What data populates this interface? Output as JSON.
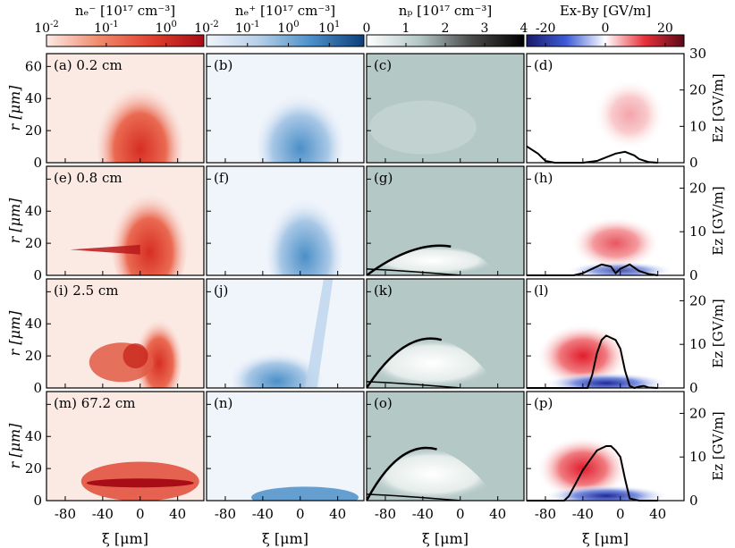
{
  "chart_data": {
    "type": "heatmap",
    "colorbars": [
      {
        "label": "nₑ⁻ [10¹⁷ cm⁻³]",
        "scale": "log",
        "ticks": [
          "10-2",
          "10-1",
          "100"
        ],
        "colors": [
          "#fbeae4",
          "#f08a6c",
          "#e0402e",
          "#a80c16"
        ]
      },
      {
        "label": "nₑ⁺ [10¹⁷ cm⁻³]",
        "scale": "log",
        "ticks": [
          "10-2",
          "10-1",
          "100",
          "101"
        ],
        "colors": [
          "#f0f4fb",
          "#b6cfe8",
          "#4b8fc8",
          "#0d3f7a"
        ]
      },
      {
        "label": "nₚ [10¹⁷ cm⁻³]",
        "scale": "linear",
        "ticks": [
          "0",
          "1",
          "2",
          "3",
          "4"
        ],
        "colors": [
          "#ffffff",
          "#b4c8c6",
          "#4a4a4a",
          "#000000"
        ]
      },
      {
        "label": "Ex-By [GV/m]",
        "scale": "linear",
        "ticks": [
          "-20",
          "0",
          "20"
        ],
        "colors": [
          "#1a1a6b",
          "#3d5bd6",
          "#ffffff",
          "#e8303a",
          "#5a0a18"
        ]
      }
    ],
    "xlabel": "ξ [μm]",
    "ylabel": "r [μm]",
    "ylabel_right": "Ez [GV/m]",
    "xlim": [
      -100,
      68
    ],
    "ylim": [
      0,
      68
    ],
    "xticks": [
      "-80",
      "-40",
      "0",
      "40"
    ],
    "yticks": [
      "0",
      "20",
      "40",
      "60"
    ],
    "right_ylim_first": [
      0,
      30
    ],
    "right_yticks_first": [
      "0",
      "10",
      "20",
      "30"
    ],
    "right_yticks": [
      "0",
      "10",
      "20"
    ],
    "rows": [
      {
        "position": "0.2 cm",
        "labels": [
          "(a) 0.2 cm",
          "(b)",
          "(c)",
          "(d)"
        ],
        "ez_curve": {
          "xi": [
            -100,
            -88,
            -80,
            -70,
            -40,
            -25,
            -15,
            -5,
            5,
            15,
            20,
            30,
            40
          ],
          "ez": [
            4.5,
            2.5,
            0.5,
            0,
            0,
            0.5,
            1.5,
            2.5,
            3.0,
            2.0,
            1.0,
            0.2,
            0
          ]
        }
      },
      {
        "position": "0.8 cm",
        "labels": [
          "(e) 0.8 cm",
          "(f)",
          "(g)",
          "(h)"
        ],
        "ez_curve": {
          "xi": [
            -100,
            -85,
            -70,
            -50,
            -40,
            -30,
            -20,
            -10,
            -5,
            0,
            10,
            20,
            30,
            40
          ],
          "ez": [
            0,
            0,
            0,
            0,
            0.5,
            1.5,
            2.5,
            2.0,
            0.5,
            1.5,
            2.5,
            1.0,
            0.3,
            0
          ]
        }
      },
      {
        "position": "2.5 cm",
        "labels": [
          "(i) 2.5 cm",
          "(j)",
          "(k)",
          "(l)"
        ],
        "ez_curve": {
          "xi": [
            -100,
            -60,
            -35,
            -30,
            -25,
            -20,
            -15,
            -10,
            -5,
            0,
            5,
            10,
            15,
            20,
            25,
            30,
            40
          ],
          "ez": [
            0,
            0,
            0,
            3.0,
            8.0,
            11.0,
            12.0,
            11.5,
            11.0,
            9.0,
            4.0,
            0.5,
            0,
            0.3,
            0.5,
            0.1,
            0
          ]
        }
      },
      {
        "position": "67.2 cm",
        "labels": [
          "(m) 67.2 cm",
          "(n)",
          "(o)",
          "(p)"
        ],
        "ez_curve": {
          "xi": [
            -100,
            -70,
            -60,
            -55,
            -50,
            -40,
            -30,
            -25,
            -20,
            -15,
            -10,
            -5,
            0,
            5,
            10,
            20,
            40
          ],
          "ez": [
            0,
            0,
            0,
            1.0,
            3.0,
            7.0,
            10.0,
            11.5,
            12.0,
            12.5,
            12.5,
            11.5,
            10.0,
            5.0,
            0.5,
            0,
            0
          ]
        }
      }
    ]
  }
}
